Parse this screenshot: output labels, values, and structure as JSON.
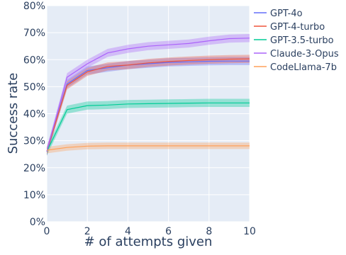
{
  "chart_data": {
    "type": "line",
    "xlabel": "# of attempts given",
    "ylabel": "Success rate",
    "xlim": [
      0,
      10
    ],
    "ylim": [
      0,
      80
    ],
    "x_ticks": [
      0,
      2,
      4,
      6,
      8,
      10
    ],
    "y_ticks": [
      0,
      10,
      20,
      30,
      40,
      50,
      60,
      70,
      80
    ],
    "y_tick_labels": [
      "0%",
      "10%",
      "20%",
      "30%",
      "40%",
      "50%",
      "60%",
      "70%",
      "80%"
    ],
    "x_tick_labels": [
      "0",
      "2",
      "4",
      "6",
      "8",
      "10"
    ],
    "grid": true,
    "legend_position": "right",
    "x": [
      0,
      1,
      2,
      3,
      4,
      5,
      6,
      7,
      8,
      9,
      10
    ],
    "series": [
      {
        "name": "GPT-4o",
        "color": "#636efa",
        "values": [
          26,
          51,
          56,
          57,
          58,
          58.5,
          59,
          59.2,
          59.4,
          59.5,
          59.5
        ],
        "band": 1.5
      },
      {
        "name": "GPT-4-turbo",
        "color": "#ef553b",
        "values": [
          26,
          50.5,
          55.5,
          57.5,
          58,
          58.8,
          59.3,
          59.7,
          60,
          60.2,
          60.3
        ],
        "band": 1.5
      },
      {
        "name": "GPT-3.5-turbo",
        "color": "#00cc96",
        "values": [
          26,
          41.5,
          43,
          43.2,
          43.6,
          43.7,
          43.8,
          43.9,
          44,
          44,
          44
        ],
        "band": 1.5
      },
      {
        "name": "Claude-3-Opus",
        "color": "#ab63fa",
        "values": [
          26,
          53.5,
          58.5,
          62.5,
          64,
          65,
          65.5,
          66,
          67,
          67.8,
          68
        ],
        "band": 1.5
      },
      {
        "name": "CodeLlama-7b",
        "color": "#ffa15a",
        "values": [
          26.5,
          27.5,
          28,
          28.1,
          28.1,
          28.1,
          28.1,
          28.1,
          28.1,
          28.1,
          28.1
        ],
        "band": 1.2
      }
    ]
  }
}
